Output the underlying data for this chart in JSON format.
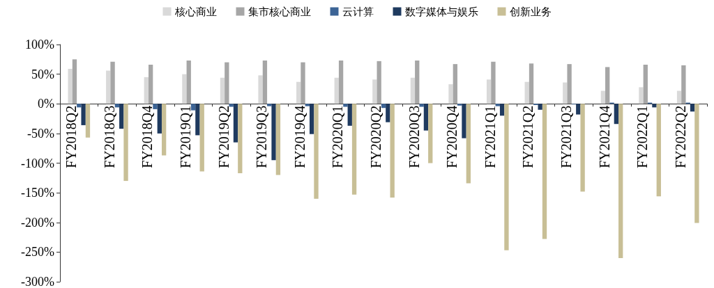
{
  "chart_data": {
    "type": "bar",
    "categories": [
      "FY2018Q2",
      "FY2018Q3",
      "FY2018Q4",
      "FY2019Q1",
      "FY2019Q2",
      "FY2019Q3",
      "FY2019Q4",
      "FY2020Q1",
      "FY2020Q2",
      "FY2020Q3",
      "FY2020Q4",
      "FY2021Q1",
      "FY2021Q2",
      "FY2021Q3",
      "FY2021Q4",
      "FY2022Q1",
      "FY2022Q2"
    ],
    "series": [
      {
        "name": "核心商业",
        "color": "#d9d9d9",
        "values": [
          59,
          56,
          45,
          50,
          44,
          48,
          37,
          44,
          41,
          44,
          33,
          41,
          37,
          36,
          22,
          28,
          22
        ]
      },
      {
        "name": "集市核心商业",
        "color": "#a6a6a6",
        "values": [
          75,
          71,
          66,
          73,
          70,
          73,
          70,
          73,
          72,
          73,
          67,
          71,
          68,
          67,
          62,
          66,
          65
        ]
      },
      {
        "name": "云计算",
        "color": "#3c6496",
        "values": [
          -6,
          -6,
          -9,
          -11,
          -5,
          -4,
          -4,
          -5,
          -7,
          -5,
          -3,
          -4,
          -2,
          -1,
          2,
          2,
          2
        ]
      },
      {
        "name": "数字媒体与娱乐",
        "color": "#1f3a5f",
        "values": [
          -36,
          -42,
          -50,
          -53,
          -65,
          -95,
          -51,
          -37,
          -31,
          -45,
          -58,
          -20,
          -10,
          -18,
          -34,
          -6,
          -13
        ]
      },
      {
        "name": "创新业务",
        "color": "#c8bf96",
        "values": [
          -57,
          -130,
          -87,
          -114,
          -117,
          -120,
          -160,
          -153,
          -158,
          -100,
          -134,
          -247,
          -228,
          -148,
          -260,
          -156,
          -201
        ]
      }
    ],
    "ylim": [
      -300,
      100
    ],
    "yticks": [
      {
        "value": -300,
        "label": "-300%"
      },
      {
        "value": -250,
        "label": "-250%"
      },
      {
        "value": -200,
        "label": "-200%"
      },
      {
        "value": -150,
        "label": "-150%"
      },
      {
        "value": -100,
        "label": "-100%"
      },
      {
        "value": -50,
        "label": "-50%"
      },
      {
        "value": 0,
        "label": "0%"
      },
      {
        "value": 50,
        "label": "50%"
      },
      {
        "value": 100,
        "label": "100%"
      }
    ],
    "legend": "top"
  }
}
